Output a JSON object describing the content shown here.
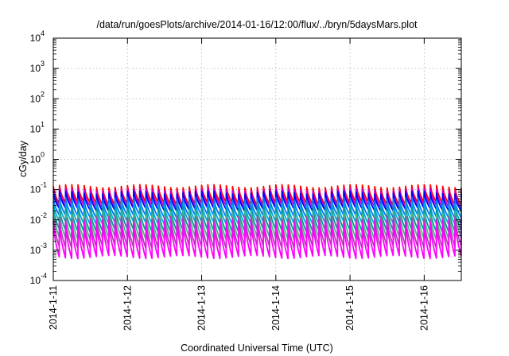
{
  "chart_data": {
    "type": "line",
    "title": "/data/run/goesPlots/archive/2014-01-16/12:00/flux/../bryn/5daysMars.plot",
    "xlabel": "Coordinated Universal Time (UTC)",
    "ylabel": "cGy/day",
    "yscale": "log",
    "ylim": [
      0.0001,
      10000
    ],
    "y_tick_labels": [
      {
        "base": "10",
        "exp": "-4"
      },
      {
        "base": "10",
        "exp": "-3"
      },
      {
        "base": "10",
        "exp": "-2"
      },
      {
        "base": "10",
        "exp": "-1"
      },
      {
        "base": "10",
        "exp": "0"
      },
      {
        "base": "10",
        "exp": "1"
      },
      {
        "base": "10",
        "exp": "2"
      },
      {
        "base": "10",
        "exp": "3"
      },
      {
        "base": "10",
        "exp": "4"
      }
    ],
    "xlim": [
      "2014-01-11 00:00",
      "2014-01-16 12:00"
    ],
    "x_tick_labels": [
      "2014-1-11",
      "2014-1-12",
      "2014-1-13",
      "2014-1-14",
      "2014-1-15",
      "2014-1-16"
    ],
    "grid": true,
    "legend": "none",
    "cycle_hours": 2,
    "series": [
      {
        "color": "#ff0000",
        "peak": 0.13,
        "trough": 0.035
      },
      {
        "color": "#cc00cc",
        "peak": 0.1,
        "trough": 0.028
      },
      {
        "color": "#0000ff",
        "peak": 0.08,
        "trough": 0.022
      },
      {
        "color": "#0077ff",
        "peak": 0.05,
        "trough": 0.013
      },
      {
        "color": "#00aadd",
        "peak": 0.035,
        "trough": 0.008
      },
      {
        "color": "#009999",
        "peak": 0.025,
        "trough": 0.0045
      },
      {
        "color": "#44bb88",
        "peak": 0.018,
        "trough": 0.0025
      },
      {
        "color": "#aa44aa",
        "peak": 0.012,
        "trough": 0.0013
      },
      {
        "color": "#ff00ff",
        "peak": 0.009,
        "trough": 0.0006
      }
    ]
  }
}
